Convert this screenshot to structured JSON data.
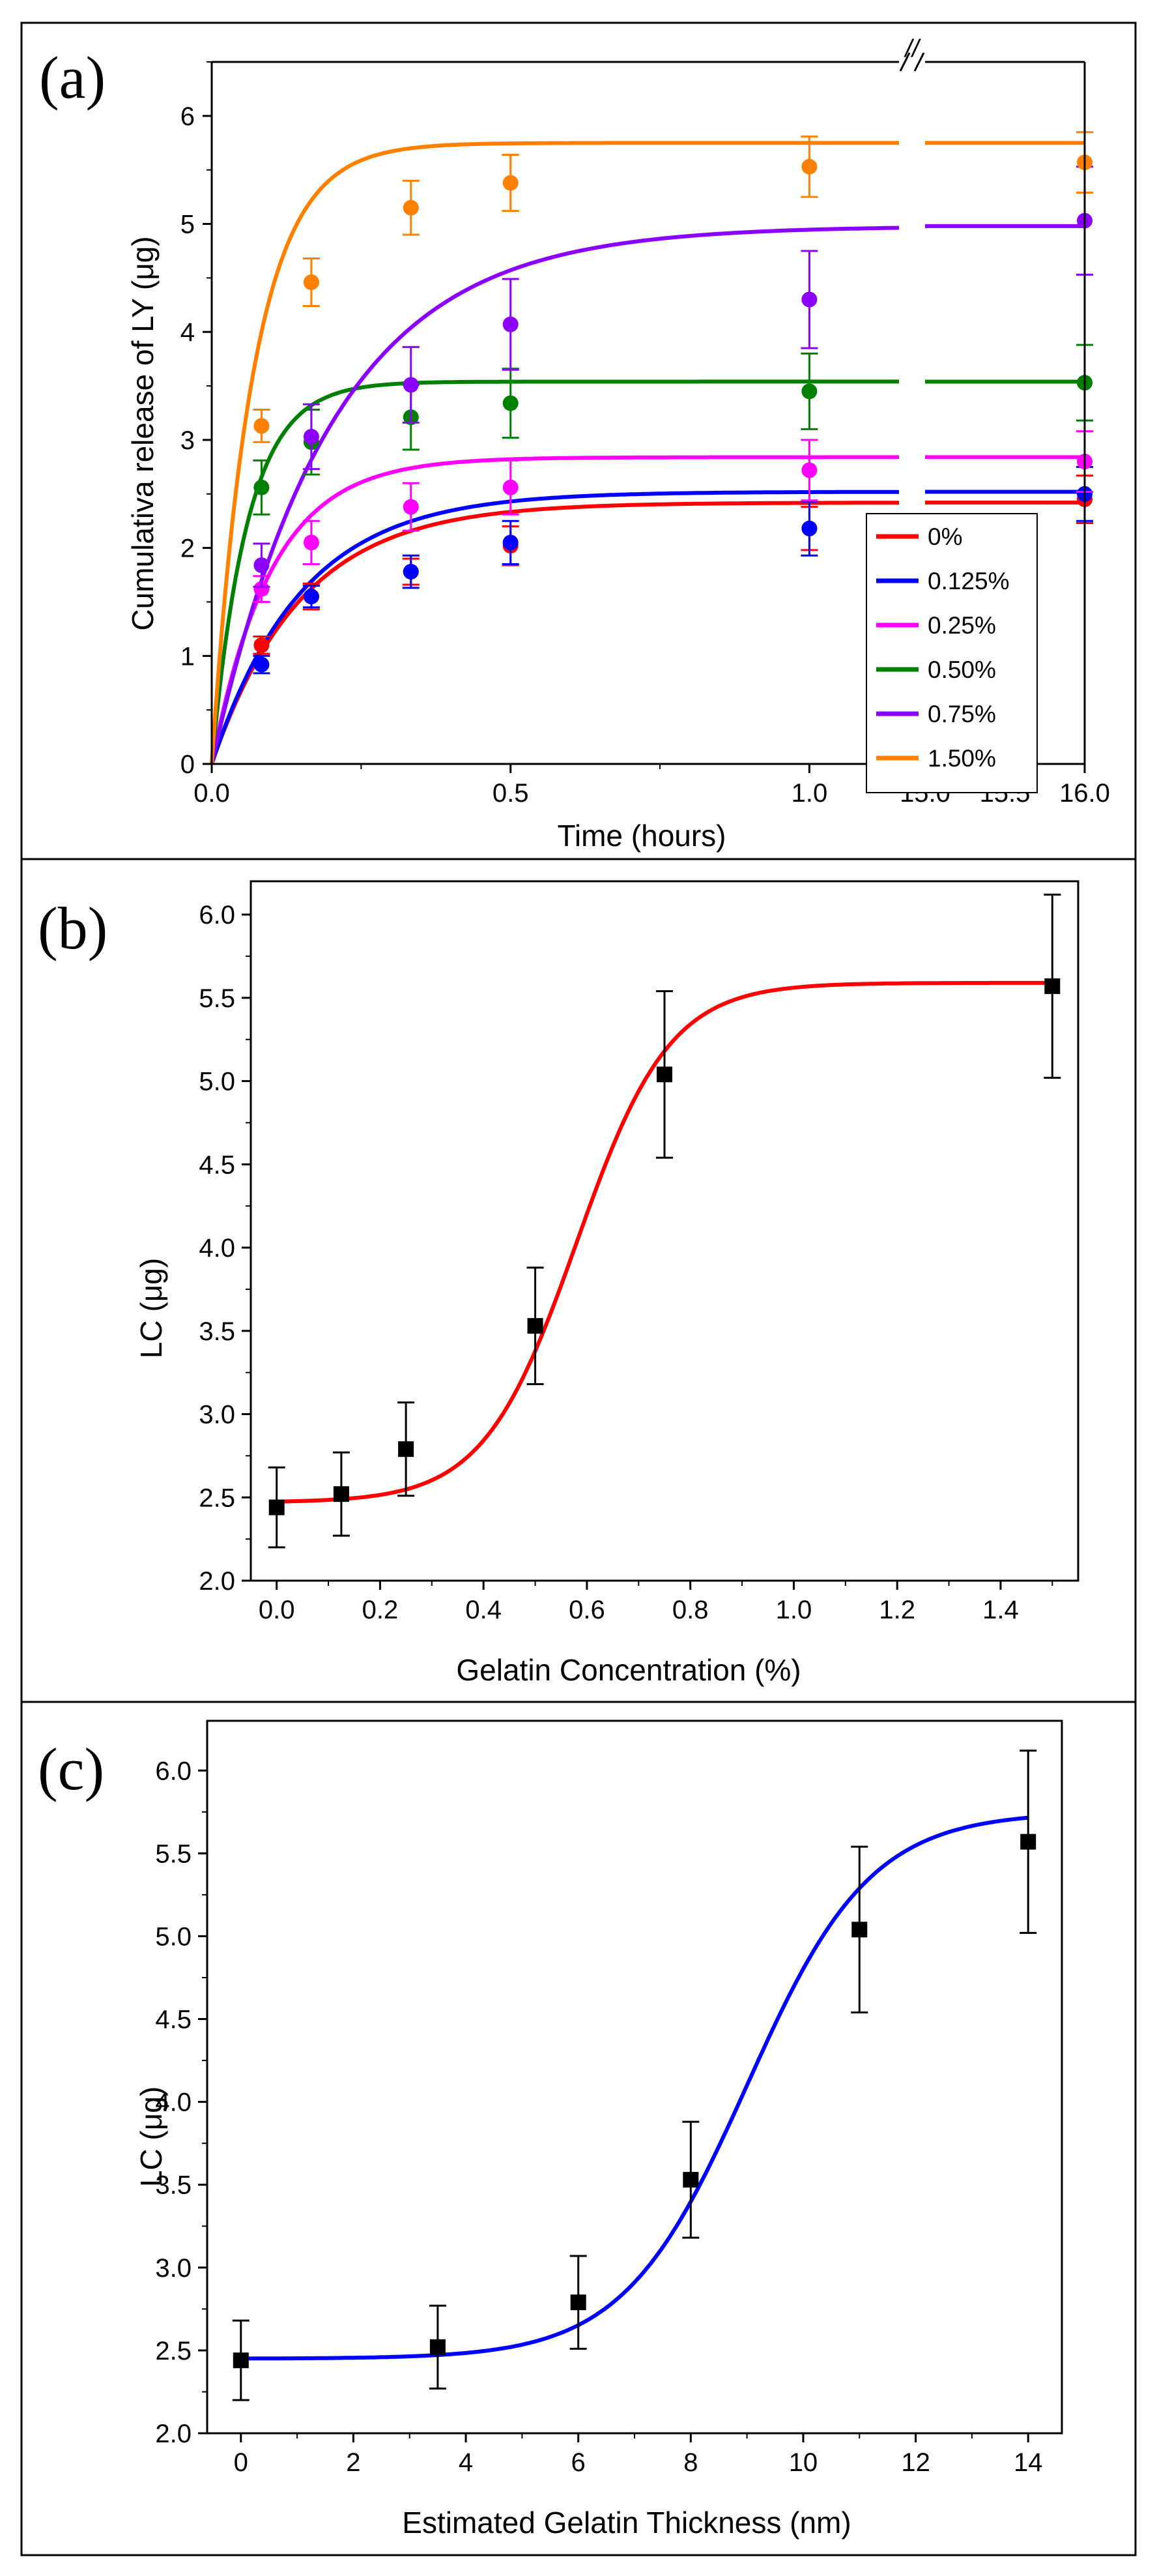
{
  "figure": {
    "panels": [
      "(a)",
      "(b)",
      "(c)"
    ]
  },
  "chart_data": [
    {
      "panel_label": "(a)",
      "type": "line",
      "title": "",
      "xlabel": "Time (hours)",
      "ylabel": "Cumulativa release of LY (μg)",
      "xlim_segments": [
        [
          0.0,
          1.15
        ],
        [
          15.0,
          16.0
        ]
      ],
      "ylim": [
        0,
        6.5
      ],
      "xticks_segment1": [
        "0.0",
        "0.5",
        "1.0"
      ],
      "xticks_segment2": [
        "15.0",
        "15.5",
        "16.0"
      ],
      "yticks": [
        "0",
        "1",
        "2",
        "3",
        "4",
        "5",
        "6"
      ],
      "axis_break": "//",
      "legend_position": "bottom-right",
      "x": [
        0.0833,
        0.1667,
        0.3333,
        0.5,
        1.0,
        16.0
      ],
      "series": [
        {
          "name": "0%",
          "color": "#ff0000",
          "values": [
            1.1,
            1.55,
            1.78,
            2.02,
            2.18,
            2.45
          ],
          "errors": [
            0.08,
            0.12,
            0.12,
            0.18,
            0.2,
            0.22
          ],
          "fit_asymptote": 2.42,
          "fit_rate": 0.15
        },
        {
          "name": "0.125%",
          "color": "#0000ff",
          "values": [
            0.92,
            1.55,
            1.78,
            2.05,
            2.18,
            2.5
          ],
          "errors": [
            0.08,
            0.1,
            0.15,
            0.2,
            0.25,
            0.25
          ],
          "fit_asymptote": 2.52,
          "fit_rate": 0.15
        },
        {
          "name": "0.25%",
          "color": "#ff00ff",
          "values": [
            1.62,
            2.05,
            2.38,
            2.56,
            2.72,
            2.8
          ],
          "errors": [
            0.12,
            0.2,
            0.22,
            0.25,
            0.28,
            0.28
          ],
          "fit_asymptote": 2.84,
          "fit_rate": 0.1
        },
        {
          "name": "0.50%",
          "color": "#008000",
          "values": [
            2.56,
            2.98,
            3.21,
            3.34,
            3.45,
            3.53
          ],
          "errors": [
            0.25,
            0.3,
            0.3,
            0.32,
            0.35,
            0.35
          ],
          "fit_asymptote": 3.54,
          "fit_rate": 0.06
        },
        {
          "name": "0.75%",
          "color": "#8b00ff",
          "values": [
            1.84,
            3.03,
            3.51,
            4.07,
            4.3,
            5.03
          ],
          "errors": [
            0.2,
            0.3,
            0.35,
            0.42,
            0.45,
            0.5
          ],
          "fit_asymptote": 4.98,
          "fit_rate": 0.2
        },
        {
          "name": "1.50%",
          "color": "#ff8000",
          "values": [
            3.13,
            4.46,
            5.15,
            5.38,
            5.53,
            5.57
          ],
          "errors": [
            0.15,
            0.22,
            0.25,
            0.26,
            0.28,
            0.28
          ],
          "fit_asymptote": 5.75,
          "fit_rate": 0.07
        }
      ]
    },
    {
      "panel_label": "(b)",
      "type": "scatter",
      "title": "",
      "xlabel": "Gelatin Concentration (%)",
      "ylabel": "LC (μg)",
      "xlim": [
        -0.05,
        1.55
      ],
      "ylim": [
        2.0,
        6.2
      ],
      "xticks": [
        "0.0",
        "0.2",
        "0.4",
        "0.6",
        "0.8",
        "1.0",
        "1.2",
        "1.4"
      ],
      "yticks": [
        "2.0",
        "2.5",
        "3.0",
        "3.5",
        "4.0",
        "4.5",
        "5.0",
        "5.5",
        "6.0"
      ],
      "series": [
        {
          "name": "LC",
          "color": "#000000",
          "x": [
            0.0,
            0.125,
            0.25,
            0.5,
            0.75,
            1.5
          ],
          "values": [
            2.44,
            2.52,
            2.79,
            3.53,
            5.04,
            5.57
          ],
          "errors": [
            0.24,
            0.25,
            0.28,
            0.35,
            0.5,
            0.55
          ]
        }
      ],
      "fit": {
        "type": "sigmoid",
        "color": "#ff0000",
        "A1": 2.47,
        "A2": 5.59,
        "x0": 0.58,
        "dx": 0.09
      }
    },
    {
      "panel_label": "(c)",
      "type": "scatter",
      "title": "",
      "xlabel": "Estimated Gelatin Thickness (nm)",
      "ylabel": "LC (μg)",
      "xlim": [
        -0.6,
        14.6
      ],
      "ylim": [
        2.0,
        6.3
      ],
      "xticks": [
        "0",
        "2",
        "4",
        "6",
        "8",
        "10",
        "12",
        "14"
      ],
      "yticks": [
        "2.0",
        "2.5",
        "3.0",
        "3.5",
        "4.0",
        "4.5",
        "5.0",
        "5.5",
        "6.0"
      ],
      "series": [
        {
          "name": "LC",
          "color": "#000000",
          "x": [
            0,
            3.5,
            6,
            8,
            11,
            14
          ],
          "values": [
            2.44,
            2.52,
            2.79,
            3.53,
            5.04,
            5.57
          ],
          "errors": [
            0.24,
            0.25,
            0.28,
            0.35,
            0.5,
            0.55
          ]
        }
      ],
      "fit": {
        "type": "sigmoid",
        "color": "#0000ff",
        "A1": 2.45,
        "A2": 5.75,
        "x0": 9.0,
        "dx": 1.1
      }
    }
  ]
}
